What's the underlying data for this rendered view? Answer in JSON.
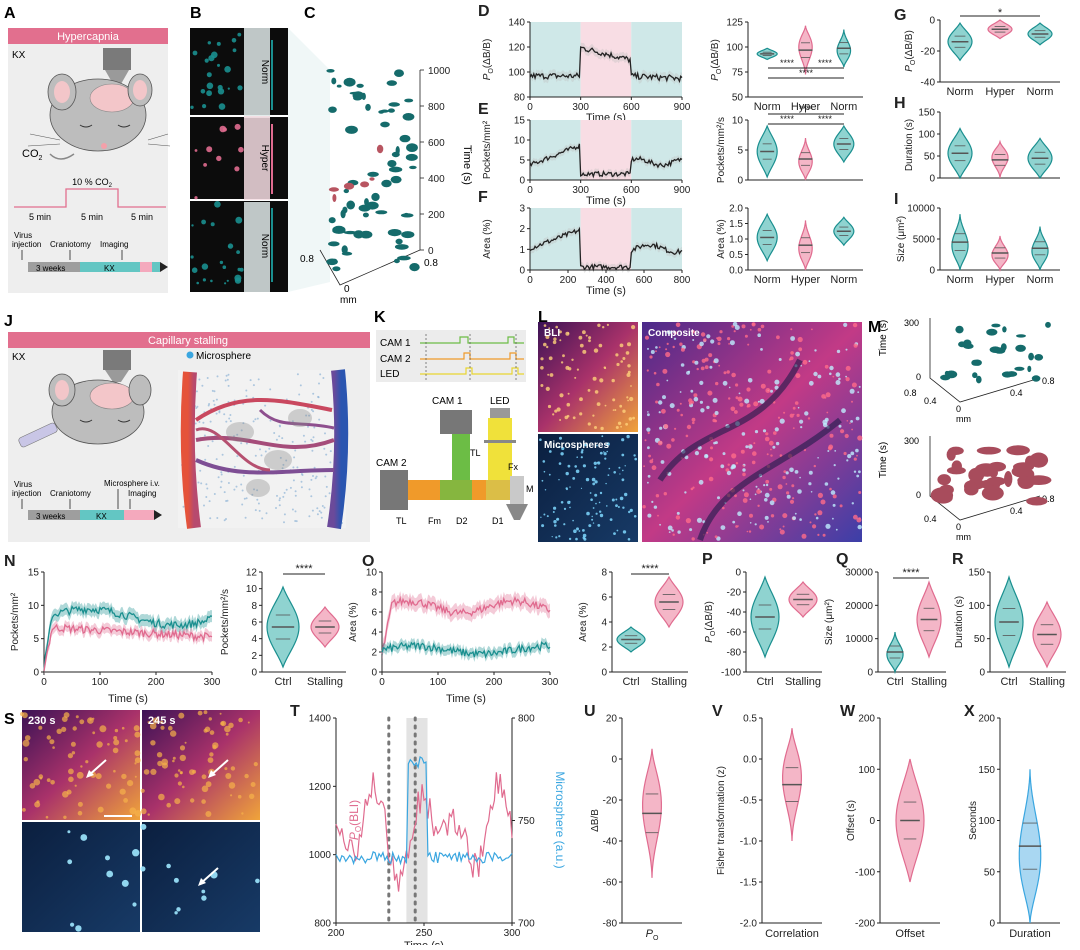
{
  "panels": {
    "A": {
      "letter": "A",
      "banner": "Hypercapnia",
      "kx": "KX",
      "co2": "CO",
      "co2_sub": "2",
      "pct": "10 % CO",
      "pct_sub": "2",
      "t1": "5 min",
      "t2": "5 min",
      "t3": "5 min",
      "tl_virus1": "Virus",
      "tl_virus2": "injection",
      "tl_cranio": "Craniotomy",
      "tl_imaging": "Imaging",
      "tl_weeks": "3 weeks",
      "tl_kx": "KX"
    },
    "B": {
      "letter": "B",
      "labels": [
        "Norm",
        "Hyper",
        "Norm"
      ]
    },
    "C": {
      "letter": "C",
      "z_label": "Time (s)",
      "z_ticks": [
        "1000",
        "800",
        "600",
        "400",
        "200",
        "0"
      ],
      "x_tick": "0.8",
      "y_tick": "0.8",
      "origin": "0",
      "unit": "mm"
    },
    "D": {
      "letter": "D",
      "ylabel": "P",
      "ylabel_sub": "O",
      "ylabel_rest": "(ΔB/B)",
      "yticks": [
        "140",
        "120",
        "100",
        "80"
      ],
      "xticks": [
        "0",
        "300",
        "600",
        "900"
      ],
      "xlabel": "Time (s)",
      "vylabel": "P",
      "vyticks": [
        "125",
        "100",
        "75",
        "50"
      ],
      "cats": [
        "Norm",
        "Hyper",
        "Norm"
      ],
      "sig": [
        "****",
        "****",
        "****"
      ]
    },
    "E": {
      "letter": "E",
      "ylabel": "Pockets/mm²",
      "yticks": [
        "15",
        "10",
        "5",
        "0"
      ],
      "xticks": [
        "0",
        "300",
        "600",
        "900"
      ],
      "xlabel": "Time (s)",
      "vylabel": "Pockets/mm²/s",
      "vyticks": [
        "10",
        "5",
        "0"
      ],
      "sig": [
        "****",
        "****",
        "****"
      ]
    },
    "F": {
      "letter": "F",
      "ylabel": "Area (%)",
      "yticks": [
        "3",
        "2",
        "1",
        "0"
      ],
      "xticks": [
        "0",
        "200",
        "400",
        "600",
        "800"
      ],
      "xlabel": "Time (s)",
      "vylabel": "Area (%)",
      "vyticks": [
        "2.0",
        "1.5",
        "1.0",
        "0.5",
        "0.0"
      ],
      "cats": [
        "Norm",
        "Hyper",
        "Norm"
      ]
    },
    "G": {
      "letter": "G",
      "yticks": [
        "0",
        "-20",
        "-40"
      ],
      "cats": [
        "Norm",
        "Hyper",
        "Norm"
      ],
      "sig": "*"
    },
    "H": {
      "letter": "H",
      "ylabel": "Duration (s)",
      "yticks": [
        "150",
        "100",
        "50",
        "0"
      ]
    },
    "I": {
      "letter": "I",
      "ylabel": "Size (μm²)",
      "yticks": [
        "10000",
        "5000",
        "0"
      ],
      "cats": [
        "Norm",
        "Hyper",
        "Norm"
      ]
    },
    "J": {
      "letter": "J",
      "banner": "Capillary stalling",
      "kx": "KX",
      "micro": "Microsphere",
      "tl_virus1": "Virus",
      "tl_virus2": "injection",
      "tl_cranio": "Craniotomy",
      "tl_micro": "Microsphere i.v.",
      "tl_imaging": "Imaging",
      "tl_weeks": "3 weeks",
      "tl_kx": "KX"
    },
    "K": {
      "letter": "K",
      "cam1": "CAM 1",
      "cam2": "CAM 2",
      "led": "LED",
      "tl": "TL",
      "fx": "Fx",
      "fm": "Fm",
      "d2": "D2",
      "d1": "D1",
      "m": "M"
    },
    "L": {
      "letter": "L",
      "bli": "BLI",
      "comp": "Composite",
      "micro": "Microspheres"
    },
    "M": {
      "letter": "M",
      "ylabel": "Time (s)",
      "zticks": [
        "300",
        "0"
      ],
      "t1": "0.8",
      "t2": "0.4",
      "t3": "0",
      "t4": "0.4",
      "t5": "0.8",
      "unit": "mm"
    },
    "N": {
      "letter": "N",
      "ylabel": "Pockets/mm²",
      "yticks": [
        "15",
        "10",
        "5",
        "0"
      ],
      "xticks": [
        "0",
        "100",
        "200",
        "300"
      ],
      "xlabel": "Time (s)",
      "vylabel": "Pockets/mm²/s",
      "vyticks": [
        "12",
        "10",
        "8",
        "6",
        "4",
        "2",
        "0"
      ],
      "cats": [
        "Ctrl",
        "Stalling"
      ],
      "sig": "****"
    },
    "O": {
      "letter": "O",
      "ylabel": "Area (%)",
      "yticks": [
        "10",
        "8",
        "6",
        "4",
        "2",
        "0"
      ],
      "xticks": [
        "0",
        "100",
        "200",
        "300"
      ],
      "xlabel": "Time (s)",
      "vylabel": "Area (%)",
      "vyticks": [
        "8",
        "6",
        "4",
        "2",
        "0"
      ],
      "cats": [
        "Ctrl",
        "Stalling"
      ],
      "sig": "****"
    },
    "P": {
      "letter": "P",
      "yticks": [
        "0",
        "-20",
        "-40",
        "-60",
        "-80",
        "-100"
      ],
      "cats": [
        "Ctrl",
        "Stalling"
      ]
    },
    "Q": {
      "letter": "Q",
      "ylabel": "Size (μm²)",
      "yticks": [
        "30000",
        "20000",
        "10000",
        "0"
      ],
      "cats": [
        "Ctrl",
        "Stalling"
      ],
      "sig": "****"
    },
    "R": {
      "letter": "R",
      "ylabel": "Duration (s)",
      "yticks": [
        "150",
        "100",
        "50",
        "0"
      ],
      "cats": [
        "Ctrl",
        "Stalling"
      ]
    },
    "S": {
      "letter": "S",
      "t1": "230 s",
      "t2": "245 s"
    },
    "T": {
      "letter": "T",
      "yticks": [
        "1400",
        "1200",
        "1000",
        "800"
      ],
      "ryticks": [
        "800",
        "750",
        "700"
      ],
      "xticks": [
        "200",
        "250",
        "300"
      ],
      "xlabel": "Time (s)",
      "ylabel_l": "P",
      "ylabel_l_rest": "(BLI)",
      "ylabel_r": "Microsphere (a.u.)"
    },
    "U": {
      "letter": "U",
      "ylabel": "ΔB/B",
      "yticks": [
        "20",
        "0",
        "-20",
        "-40",
        "-60",
        "-80"
      ],
      "xlabel": "P"
    },
    "V": {
      "letter": "V",
      "ylabel": "Fisher transformation (z)",
      "yticks": [
        "0.5",
        "0.0",
        "-0.5",
        "-1.0",
        "-1.5",
        "-2.0"
      ],
      "xlabel": "Correlation"
    },
    "W": {
      "letter": "W",
      "ylabel": "Offset (s)",
      "yticks": [
        "200",
        "100",
        "0",
        "-100",
        "-200"
      ],
      "xlabel": "Offset"
    },
    "X": {
      "letter": "X",
      "ylabel": "Seconds",
      "yticks": [
        "200",
        "150",
        "100",
        "50",
        "0"
      ],
      "xlabel": "Duration"
    }
  },
  "colors": {
    "teal": "#1a8f8f",
    "pink": "#e06b8f",
    "pinkfill": "#f4b6c7",
    "tealfill": "#8fd3d0",
    "banner": "#e26f8e",
    "bgteal": "#cfe8e8",
    "bgpink": "#f8dde4",
    "micro": "#3aa6e0",
    "dark": "#231f20"
  }
}
